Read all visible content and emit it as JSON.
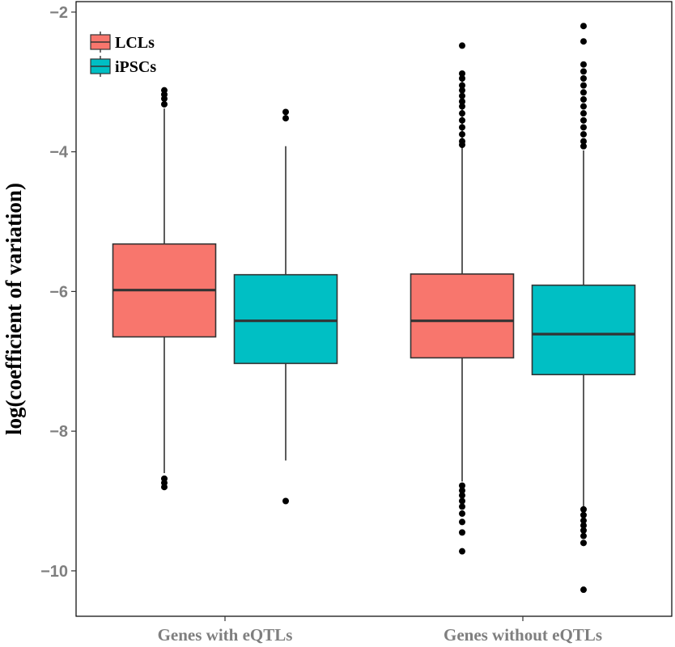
{
  "chart_data": {
    "type": "box",
    "title": "",
    "xlabel": "",
    "ylabel": "log(coefficient of variation)",
    "ylim": [
      -10.65,
      -1.85
    ],
    "yticks": [
      -2,
      -4,
      -6,
      -8,
      -10
    ],
    "ytick_labels": [
      "−2",
      "−4",
      "−6",
      "−8",
      "−10"
    ],
    "categories": [
      "Genes with eQTLs",
      "Genes without eQTLs"
    ],
    "grid": false,
    "legend": {
      "position": "top-left"
    },
    "series": [
      {
        "name": "LCLs",
        "color": "#F8766D",
        "boxes": [
          {
            "category": "Genes with eQTLs",
            "whisker_low": -8.6,
            "q1": -6.65,
            "median": -5.98,
            "q3": -5.32,
            "whisker_high": -3.38,
            "outliers": [
              -3.12,
              -3.18,
              -3.24,
              -3.32,
              -8.68,
              -8.74,
              -8.8
            ]
          },
          {
            "category": "Genes without eQTLs",
            "whisker_low": -8.72,
            "q1": -6.95,
            "median": -6.42,
            "q3": -5.75,
            "whisker_high": -2.95,
            "outliers": [
              -2.48,
              -2.88,
              -2.95,
              -3.05,
              -3.12,
              -3.2,
              -3.28,
              -3.35,
              -3.45,
              -3.55,
              -3.65,
              -3.75,
              -3.85,
              -3.9,
              -8.78,
              -8.85,
              -8.92,
              -9.0,
              -9.08,
              -9.18,
              -9.3,
              -9.45,
              -9.72
            ]
          }
        ]
      },
      {
        "name": "iPSCs",
        "color": "#00BFC4",
        "boxes": [
          {
            "category": "Genes with eQTLs",
            "whisker_low": -8.42,
            "q1": -7.03,
            "median": -6.42,
            "q3": -5.76,
            "whisker_high": -3.92,
            "outliers": [
              -3.43,
              -3.52,
              -9.0
            ]
          },
          {
            "category": "Genes without eQTLs",
            "whisker_low": -9.1,
            "q1": -7.19,
            "median": -6.61,
            "q3": -5.91,
            "whisker_high": -3.98,
            "outliers": [
              -2.2,
              -2.42,
              -2.75,
              -2.85,
              -2.95,
              -3.05,
              -3.15,
              -3.25,
              -3.35,
              -3.45,
              -3.55,
              -3.65,
              -3.75,
              -3.85,
              -3.92,
              -9.12,
              -9.2,
              -9.28,
              -9.35,
              -9.42,
              -9.5,
              -9.6,
              -10.27
            ]
          }
        ]
      }
    ]
  }
}
